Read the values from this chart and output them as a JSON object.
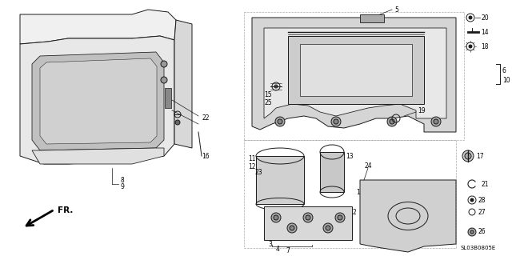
{
  "bg_color": "#ffffff",
  "code": "SL03B0805E",
  "fig_width": 6.4,
  "fig_height": 3.2,
  "dpi": 100
}
